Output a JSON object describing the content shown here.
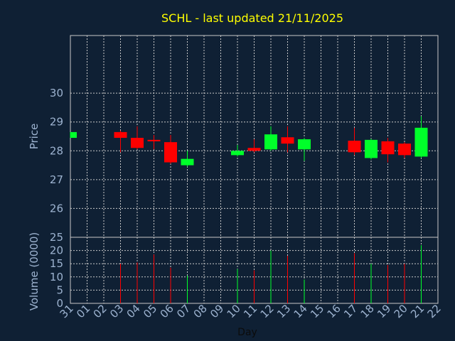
{
  "chart_data": {
    "type": "candlestick",
    "title": "SCHL - last updated 21/11/2025",
    "xlabel": "Day",
    "x_ticks": [
      "31",
      "01",
      "02",
      "03",
      "04",
      "05",
      "06",
      "07",
      "08",
      "09",
      "10",
      "11",
      "12",
      "13",
      "14",
      "15",
      "16",
      "17",
      "18",
      "19",
      "20",
      "21",
      "22"
    ],
    "price_panel": {
      "ylabel": "Price",
      "ylim": [
        25,
        32
      ],
      "y_ticks": [
        "26",
        "27",
        "28",
        "29",
        "30"
      ],
      "candles": [
        {
          "day": "31",
          "open": 28.45,
          "close": 28.65,
          "high": 28.65,
          "low": 28.45
        },
        {
          "day": "03",
          "open": 28.65,
          "close": 28.45,
          "high": 28.7,
          "low": 27.95
        },
        {
          "day": "04",
          "open": 28.45,
          "close": 28.1,
          "high": 28.85,
          "low": 28.05
        },
        {
          "day": "05",
          "open": 28.38,
          "close": 28.33,
          "high": 28.55,
          "low": 28.05
        },
        {
          "day": "06",
          "open": 28.3,
          "close": 27.6,
          "high": 28.55,
          "low": 27.55
        },
        {
          "day": "07",
          "open": 27.5,
          "close": 27.72,
          "high": 28.0,
          "low": 27.45
        },
        {
          "day": "10",
          "open": 27.85,
          "close": 28.0,
          "high": 28.2,
          "low": 27.8
        },
        {
          "day": "11",
          "open": 28.1,
          "close": 28.0,
          "high": 28.4,
          "low": 27.95
        },
        {
          "day": "12",
          "open": 28.05,
          "close": 28.57,
          "high": 28.85,
          "low": 28.0
        },
        {
          "day": "13",
          "open": 28.47,
          "close": 28.25,
          "high": 28.85,
          "low": 27.95
        },
        {
          "day": "14",
          "open": 28.05,
          "close": 28.4,
          "high": 28.45,
          "low": 27.65
        },
        {
          "day": "17",
          "open": 28.35,
          "close": 27.95,
          "high": 28.8,
          "low": 27.85
        },
        {
          "day": "18",
          "open": 27.75,
          "close": 28.38,
          "high": 28.42,
          "low": 27.7
        },
        {
          "day": "19",
          "open": 28.33,
          "close": 27.88,
          "high": 28.45,
          "low": 27.6
        },
        {
          "day": "20",
          "open": 28.25,
          "close": 27.85,
          "high": 28.3,
          "low": 27.75
        },
        {
          "day": "21",
          "open": 27.8,
          "close": 28.8,
          "high": 29.2,
          "low": 27.75
        }
      ]
    },
    "volume_panel": {
      "ylabel": "Volume (0000)",
      "ylim": [
        0,
        25
      ],
      "y_ticks": [
        "0",
        "5",
        "10",
        "15",
        "20",
        "25"
      ],
      "bars": [
        {
          "day": "03",
          "value": 15,
          "direction": "down"
        },
        {
          "day": "04",
          "value": 15.5,
          "direction": "down"
        },
        {
          "day": "05",
          "value": 18.5,
          "direction": "down"
        },
        {
          "day": "06",
          "value": 13.5,
          "direction": "down"
        },
        {
          "day": "07",
          "value": 10.5,
          "direction": "up"
        },
        {
          "day": "10",
          "value": 13,
          "direction": "up"
        },
        {
          "day": "11",
          "value": 12.5,
          "direction": "down"
        },
        {
          "day": "12",
          "value": 20,
          "direction": "up"
        },
        {
          "day": "13",
          "value": 18,
          "direction": "down"
        },
        {
          "day": "14",
          "value": 9,
          "direction": "up"
        },
        {
          "day": "17",
          "value": 19,
          "direction": "down"
        },
        {
          "day": "18",
          "value": 15,
          "direction": "up"
        },
        {
          "day": "19",
          "value": 14.5,
          "direction": "down"
        },
        {
          "day": "20",
          "value": 15,
          "direction": "down"
        },
        {
          "day": "21",
          "value": 22,
          "direction": "up"
        }
      ]
    },
    "colors": {
      "background": "#0f2034",
      "up": "#00ff2a",
      "down": "#ff0000",
      "title": "#ffff00",
      "axis_text": "#9db3d0",
      "grid": "#c8c8c8",
      "xlabel": "#0b0b0b"
    },
    "grid": true
  }
}
